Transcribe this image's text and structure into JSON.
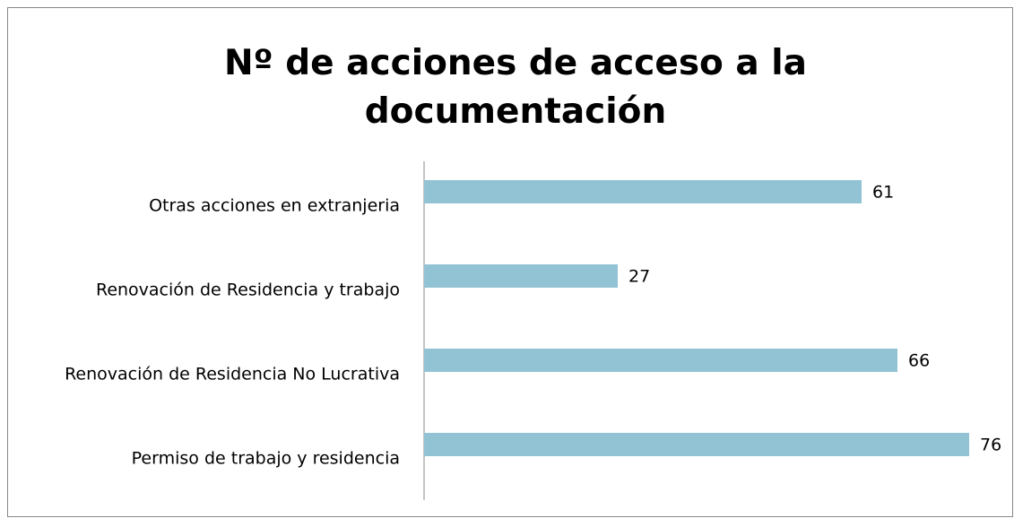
{
  "chart_data": {
    "type": "bar",
    "orientation": "horizontal",
    "title": "Nº de acciones de acceso a la documentación",
    "categories": [
      "Otras acciones en extranjeria",
      "Renovación de Residencia y trabajo",
      "Renovación de Residencia No Lucrativa",
      "Permiso de trabajo y residencia"
    ],
    "values": [
      61,
      27,
      66,
      76
    ],
    "color": "#92c3d4"
  }
}
